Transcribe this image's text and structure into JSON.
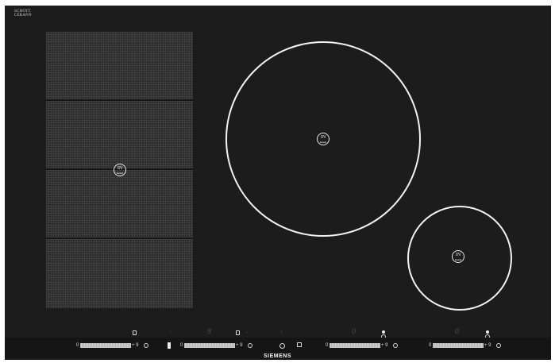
{
  "brand": {
    "glass_maker": "SCHOTT\nCERAN®",
    "sub_label": "",
    "manufacturer": "SIEMENS"
  },
  "zones": {
    "flex_badge": {
      "in": "IN",
      "boost": "boost"
    },
    "large_badge": {
      "in": "IN",
      "boost": "boost"
    },
    "small_badge": {
      "in": "IN",
      "boost": "boost"
    }
  },
  "controls": {
    "slider_min": "0",
    "slider_max": "9",
    "plus": "+",
    "sliders": [
      {
        "zone": "flex",
        "min": "0",
        "max": "+ 9"
      },
      {
        "zone": "left-middle",
        "min": "0",
        "max": "+ 9"
      },
      {
        "zone": "large",
        "min": "0",
        "max": "+ 9"
      },
      {
        "zone": "small",
        "min": "0",
        "max": "+ 9"
      }
    ]
  },
  "colors": {
    "glass": "#1c1c1c",
    "ring": "#f2f2f2",
    "control_bar": "#151515",
    "track": "#cfcfcf"
  },
  "icons": [
    "timer-icon",
    "lock-icon",
    "power-icon",
    "power-management-icon",
    "flex-icon"
  ]
}
